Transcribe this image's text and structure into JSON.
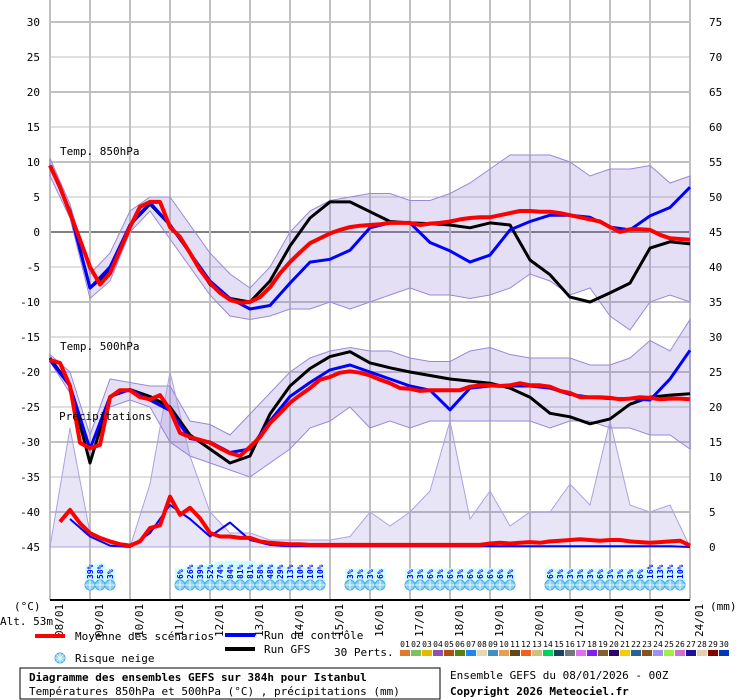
{
  "legend": {
    "mean": "Moyenne des scénarios",
    "control": "Run de contrôle",
    "gfs": "Run GFS",
    "snow": "Risque neige",
    "perts": "30 Perts."
  },
  "title_box": {
    "title": "Diagramme des ensembles GEFS sur 384h pour Istanbul",
    "subtitle": "Températures 850hPa et 500hPa (°C) , précipitations (mm)"
  },
  "run_info": "Ensemble GEFS du 08/01/2026 - 00Z",
  "copyright": "Copyright 2026 Meteociel.fr",
  "chart_data": {
    "type": "line",
    "left_axis": {
      "label": "(°C)",
      "range": [
        -45,
        30
      ],
      "ticks": [
        30,
        25,
        20,
        15,
        10,
        5,
        0,
        -5,
        -10,
        -15,
        -20,
        -25,
        -30,
        -35,
        -40,
        -45
      ]
    },
    "right_axis": {
      "label": "(mm)",
      "range": [
        0,
        75
      ],
      "ticks": [
        75,
        70,
        65,
        60,
        55,
        50,
        45,
        40,
        35,
        30,
        25,
        20,
        15,
        10,
        5,
        0
      ]
    },
    "altitude": "Alt. 53m",
    "x_tick_labels": [
      "08/01",
      "09/01",
      "10/01",
      "11/01",
      "12/01",
      "13/01",
      "14/01",
      "15/01",
      "16/01",
      "17/01",
      "18/01",
      "19/01",
      "20/01",
      "21/01",
      "22/01",
      "23/01",
      "24/01"
    ],
    "forecast_hours": 384,
    "grid": true,
    "panel_labels": {
      "t850": "Temp. 850hPa",
      "t500": "Temp. 500hPa",
      "precip": "Précipitations"
    },
    "colors": {
      "mean": "#ff0000",
      "control": "#0000ff",
      "gfs": "#000000",
      "snow_text": "#0000ff",
      "snow_bar": "#ccffff"
    },
    "t850": {
      "mean": {
        "step_hours": 6,
        "values": [
          9.5,
          6.4,
          2.7,
          -1.1,
          -5,
          -7.5,
          -5.9,
          -2.6,
          0.7,
          3.6,
          4.3,
          4.3,
          0.7,
          -0.7,
          -3,
          -5.4,
          -7.3,
          -8.7,
          -9.7,
          -10.1,
          -10,
          -9.3,
          -7.9,
          -5.9,
          -4.3,
          -2.9,
          -1.6,
          -0.9,
          -0.2,
          0.3,
          0.7,
          0.9,
          1,
          1.1,
          1.3,
          1.3,
          1.3,
          1,
          1.2,
          1.3,
          1.5,
          1.8,
          2,
          2.1,
          2.1,
          2.4,
          2.7,
          3,
          3,
          2.9,
          2.9,
          2.7,
          2.4,
          2.1,
          1.8,
          1.5,
          0.7,
          0,
          0.4,
          0.4,
          0.3,
          -0.4,
          -0.9,
          -1,
          -1.1
        ]
      },
      "control": {
        "step_hours": 12,
        "values": [
          9.5,
          3,
          -8,
          -5,
          1,
          4.2,
          1,
          -3,
          -7,
          -9.5,
          -11,
          -10.5,
          -7.3,
          -4.3,
          -3.9,
          -2.6,
          0.6,
          1.3,
          1.3,
          -1.5,
          -2.7,
          -4.3,
          -3.3,
          0.3,
          1.5,
          2.4,
          2.4,
          2.1,
          0.7,
          0.3,
          2.3,
          3.5,
          6.4
        ]
      },
      "gfs": {
        "step_hours": 12,
        "values": [
          9.5,
          3,
          -8,
          -5.5,
          1,
          4,
          1,
          -3,
          -7.5,
          -9.5,
          -10,
          -7,
          -2,
          2,
          4.3,
          4.3,
          2.9,
          1.5,
          1.3,
          1.2,
          1,
          0.6,
          1.3,
          1,
          -4,
          -6.1,
          -9.3,
          -10,
          -8.7,
          -7.3,
          -2.3,
          -1.4,
          -1.7
        ]
      },
      "perturbation_spread": {
        "step_hours": 12,
        "min": [
          8,
          2,
          -9.5,
          -7,
          0,
          3,
          -1,
          -5,
          -9,
          -12,
          -12.5,
          -12,
          -11,
          -11,
          -10,
          -11,
          -10,
          -9,
          -8,
          -9,
          -9,
          -9.5,
          -9,
          -8,
          -6,
          -7,
          -9,
          -8,
          -12,
          -14,
          -10,
          -9,
          -10
        ],
        "max": [
          10.5,
          4,
          -6,
          -3,
          3,
          5,
          5,
          1,
          -3,
          -6,
          -8,
          -5,
          0,
          3,
          4.5,
          5,
          5.5,
          5.5,
          4.5,
          4.5,
          5.5,
          7,
          9,
          11,
          11,
          11,
          10,
          8,
          9,
          9,
          9.5,
          7,
          8
        ]
      }
    },
    "t500": {
      "mean": {
        "step_hours": 6,
        "values": [
          -18.3,
          -18.7,
          -22,
          -30.1,
          -30.9,
          -30.4,
          -23.6,
          -22.6,
          -22.6,
          -23.6,
          -23.9,
          -23.3,
          -25.4,
          -28.7,
          -29.3,
          -29.7,
          -30.1,
          -30.9,
          -31.6,
          -32,
          -30.7,
          -29.3,
          -27.3,
          -25.9,
          -24.4,
          -23.3,
          -22.3,
          -21.1,
          -20.7,
          -20.1,
          -19.9,
          -20.1,
          -20.5,
          -21.1,
          -21.6,
          -22.3,
          -22.4,
          -22.7,
          -22.6,
          -22.6,
          -22.6,
          -22.6,
          -22.1,
          -21.9,
          -21.9,
          -22,
          -21.9,
          -21.6,
          -21.9,
          -21.9,
          -22.1,
          -22.7,
          -23,
          -23.6,
          -23.6,
          -23.6,
          -23.7,
          -23.9,
          -23.8,
          -23.6,
          -23.7,
          -23.9,
          -23.8,
          -23.8,
          -23.9
        ]
      },
      "control": {
        "step_hours": 12,
        "values": [
          -18.3,
          -22,
          -31,
          -23.5,
          -22.5,
          -24,
          -25.5,
          -29.5,
          -30,
          -31.5,
          -31,
          -27,
          -23.5,
          -21.5,
          -19.7,
          -19,
          -20,
          -21,
          -22,
          -22.6,
          -25.4,
          -22.3,
          -22,
          -22,
          -22,
          -22.3,
          -23.2,
          -23.6,
          -23.8,
          -23.8,
          -24,
          -21,
          -16.9
        ]
      },
      "gfs": {
        "step_hours": 12,
        "values": [
          -18,
          -22,
          -33,
          -23.5,
          -22.5,
          -23.5,
          -25,
          -29,
          -31,
          -33,
          -32,
          -26,
          -22,
          -19.5,
          -17.8,
          -17.1,
          -18.7,
          -19.4,
          -20,
          -20.5,
          -21,
          -21.3,
          -21.6,
          -22.3,
          -23.6,
          -25.9,
          -26.4,
          -27.4,
          -26.7,
          -24.6,
          -23.6,
          -23.3,
          -23.1
        ]
      },
      "perturbation_spread": {
        "step_hours": 12,
        "min": [
          -18.5,
          -23,
          -32.5,
          -25,
          -24,
          -25,
          -30,
          -32,
          -33,
          -34,
          -35,
          -33,
          -31,
          -28,
          -27,
          -25,
          -28,
          -27,
          -28,
          -27,
          -27,
          -27,
          -27,
          -27,
          -27,
          -28,
          -27,
          -27,
          -28,
          -28,
          -29,
          -29,
          -31
        ],
        "max": [
          -17.5,
          -20,
          -29,
          -21,
          -21.5,
          -22,
          -22,
          -27,
          -27.5,
          -29,
          -26,
          -23,
          -20,
          -18,
          -17,
          -16.5,
          -17,
          -17,
          -18,
          -18.5,
          -18.5,
          -17,
          -16.5,
          -17.5,
          -18,
          -18,
          -18,
          -19,
          -19,
          -18,
          -15.5,
          -17,
          -12.5
        ]
      }
    },
    "precip": {
      "mean": {
        "step_hours": 6,
        "values": [
          null,
          3.6,
          5.3,
          3.4,
          2,
          1.3,
          0.8,
          0.4,
          0.2,
          0.8,
          2.7,
          3.1,
          7.2,
          4.6,
          5.6,
          4.1,
          2,
          1.5,
          1.5,
          1.3,
          1.3,
          0.8,
          0.6,
          0.5,
          0.4,
          0.4,
          0.3,
          0.3,
          0.3,
          0.3,
          0.3,
          0.3,
          0.3,
          0.3,
          0.3,
          0.3,
          0.3,
          0.3,
          0.3,
          0.3,
          0.3,
          0.3,
          0.3,
          0.3,
          0.5,
          0.6,
          0.5,
          0.6,
          0.7,
          0.6,
          0.8,
          0.9,
          1,
          1.1,
          1,
          0.9,
          1,
          1,
          0.8,
          0.7,
          0.6,
          0.7,
          0.8,
          0.9,
          0.2
        ]
      },
      "control": {
        "step_hours": 12,
        "values": [
          null,
          4,
          1.5,
          0.2,
          0,
          2,
          6,
          4,
          1.5,
          3.5,
          1,
          0.3,
          0.1,
          0.1,
          0.1,
          0.1,
          0.1,
          0.1,
          0.1,
          0.1,
          0.1,
          0.1,
          0.1,
          0.1,
          0.1,
          0.1,
          0.1,
          0.1,
          0.1,
          0.1,
          0.1,
          0.1,
          0
        ]
      },
      "perturbation_max": {
        "step_hours": 12,
        "values": [
          0,
          17,
          2,
          0.5,
          0,
          9,
          25,
          13,
          5,
          2,
          2,
          1,
          1,
          1,
          1,
          1.5,
          5,
          3,
          5,
          8,
          18,
          4,
          8,
          3,
          5,
          5,
          9,
          6,
          18,
          6,
          5,
          6,
          0
        ]
      }
    },
    "snow_risk": [
      {
        "start_hour": 24,
        "step_hours": 6,
        "percents": [
          39,
          58,
          3
        ]
      },
      {
        "start_hour": 78,
        "step_hours": 6,
        "percents": [
          6,
          26,
          39,
          52,
          74,
          84,
          81,
          81,
          58,
          48,
          29,
          13,
          10,
          10,
          10
        ]
      },
      {
        "start_hour": 180,
        "step_hours": 6,
        "percents": [
          3,
          3,
          3,
          6
        ]
      },
      {
        "start_hour": 216,
        "step_hours": 6,
        "percents": [
          3,
          3,
          6,
          3,
          6,
          3,
          6,
          6,
          6,
          6,
          3
        ]
      },
      {
        "start_hour": 300,
        "step_hours": 6,
        "percents": [
          6,
          3,
          3,
          3,
          3,
          6,
          3,
          3,
          3,
          6,
          16,
          13,
          13,
          10
        ]
      }
    ],
    "perturbations": {
      "labels": [
        "01",
        "02",
        "03",
        "04",
        "05",
        "06",
        "07",
        "08",
        "09",
        "10",
        "11",
        "12",
        "13",
        "14",
        "15",
        "16",
        "17",
        "18",
        "19",
        "20",
        "21",
        "22",
        "23",
        "24",
        "25",
        "26",
        "27",
        "28",
        "29",
        "30"
      ],
      "colors": [
        "#e07a30",
        "#80c060",
        "#e6b800",
        "#9050b0",
        "#b05010",
        "#5a8010",
        "#1e88f0",
        "#e8d8b0",
        "#4090c0",
        "#e8a050",
        "#604818",
        "#f06020",
        "#d0c080",
        "#00d060",
        "#204060",
        "#707880",
        "#e070f0",
        "#8020f0",
        "#806030",
        "#300070",
        "#f0d000",
        "#2a6098",
        "#8a5020",
        "#a090f0",
        "#a0f040",
        "#d070d0",
        "#20109a",
        "#e0d0b0",
        "#800000",
        "#0038b8"
      ]
    }
  }
}
